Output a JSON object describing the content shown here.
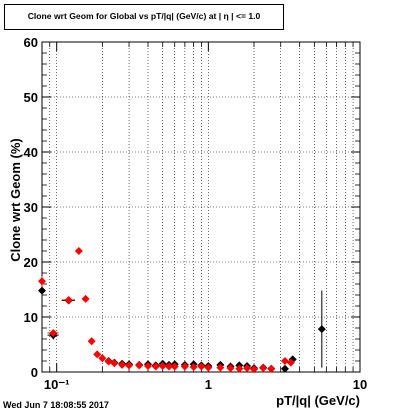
{
  "chart_data": {
    "type": "scatter",
    "title": "Clone wrt Geom for Global vs pT/|q| (GeV/c) at | η | <= 1.0",
    "xlabel": "pT/|q| (GeV/c)",
    "ylabel": "Clone wrt Geom (%)",
    "xscale": "log",
    "xlim": [
      0.08,
      10
    ],
    "ylim": [
      0,
      60
    ],
    "y_ticks": [
      0,
      10,
      20,
      30,
      40,
      50,
      60
    ],
    "x_ticks": [
      {
        "value": 0.1,
        "label": "10⁻¹"
      },
      {
        "value": 1,
        "label": "1"
      },
      {
        "value": 10,
        "label": "10"
      }
    ],
    "grid": true,
    "series": [
      {
        "color": "#000000",
        "marker": "diamond",
        "points": [
          {
            "x": 0.08,
            "y": 14.8,
            "xerr": 0.004,
            "yerr": 1.2
          },
          {
            "x": 0.095,
            "y": 6.7,
            "xerr": 0.008,
            "yerr": 0.8
          },
          {
            "x": 0.12,
            "y": 13.0,
            "xerr": 0.012
          },
          {
            "x": 0.22,
            "y": 2.0
          },
          {
            "x": 0.24,
            "y": 1.7
          },
          {
            "x": 0.27,
            "y": 1.5
          },
          {
            "x": 0.3,
            "y": 1.4
          },
          {
            "x": 0.35,
            "y": 1.3
          },
          {
            "x": 0.4,
            "y": 1.4
          },
          {
            "x": 0.45,
            "y": 1.2
          },
          {
            "x": 0.5,
            "y": 1.5
          },
          {
            "x": 0.55,
            "y": 1.3
          },
          {
            "x": 0.6,
            "y": 1.4
          },
          {
            "x": 0.7,
            "y": 1.3
          },
          {
            "x": 0.8,
            "y": 1.4
          },
          {
            "x": 0.9,
            "y": 1.2
          },
          {
            "x": 1.0,
            "y": 1.1
          },
          {
            "x": 1.2,
            "y": 1.3
          },
          {
            "x": 1.4,
            "y": 1.0
          },
          {
            "x": 1.6,
            "y": 1.2
          },
          {
            "x": 1.8,
            "y": 1.1
          },
          {
            "x": 2.0,
            "y": 0.7
          },
          {
            "x": 2.3,
            "y": 0.8
          },
          {
            "x": 2.6,
            "y": 0.6
          },
          {
            "x": 3.2,
            "y": 0.6
          },
          {
            "x": 3.6,
            "y": 2.3
          },
          {
            "x": 5.6,
            "y": 7.8,
            "yerr": 7.0
          }
        ]
      },
      {
        "color": "#ff0000",
        "marker": "diamond",
        "points": [
          {
            "x": 0.08,
            "y": 16.5,
            "xerr": 0.004,
            "yerr": 1.0
          },
          {
            "x": 0.095,
            "y": 7.1,
            "xerr": 0.008
          },
          {
            "x": 0.12,
            "y": 13.1,
            "xerr": 0.012
          },
          {
            "x": 0.14,
            "y": 22.0
          },
          {
            "x": 0.155,
            "y": 13.3
          },
          {
            "x": 0.17,
            "y": 5.6
          },
          {
            "x": 0.185,
            "y": 3.2
          },
          {
            "x": 0.2,
            "y": 2.5
          },
          {
            "x": 0.22,
            "y": 1.9
          },
          {
            "x": 0.24,
            "y": 1.6
          },
          {
            "x": 0.27,
            "y": 1.3
          },
          {
            "x": 0.3,
            "y": 1.2
          },
          {
            "x": 0.35,
            "y": 1.2
          },
          {
            "x": 0.4,
            "y": 1.1
          },
          {
            "x": 0.45,
            "y": 1.0
          },
          {
            "x": 0.5,
            "y": 1.1
          },
          {
            "x": 0.55,
            "y": 1.0
          },
          {
            "x": 0.6,
            "y": 1.0
          },
          {
            "x": 0.7,
            "y": 1.0
          },
          {
            "x": 0.8,
            "y": 0.9
          },
          {
            "x": 0.9,
            "y": 1.0
          },
          {
            "x": 1.0,
            "y": 0.8
          },
          {
            "x": 1.2,
            "y": 0.8
          },
          {
            "x": 1.4,
            "y": 0.7
          },
          {
            "x": 1.6,
            "y": 0.6
          },
          {
            "x": 1.8,
            "y": 0.7
          },
          {
            "x": 2.0,
            "y": 0.5
          },
          {
            "x": 2.3,
            "y": 0.7
          },
          {
            "x": 2.6,
            "y": 0.6
          },
          {
            "x": 3.2,
            "y": 2.0
          },
          {
            "x": 3.5,
            "y": 1.7
          }
        ]
      }
    ]
  },
  "footer": {
    "timestamp": "Wed Jun  7 18:08:55 2017"
  }
}
